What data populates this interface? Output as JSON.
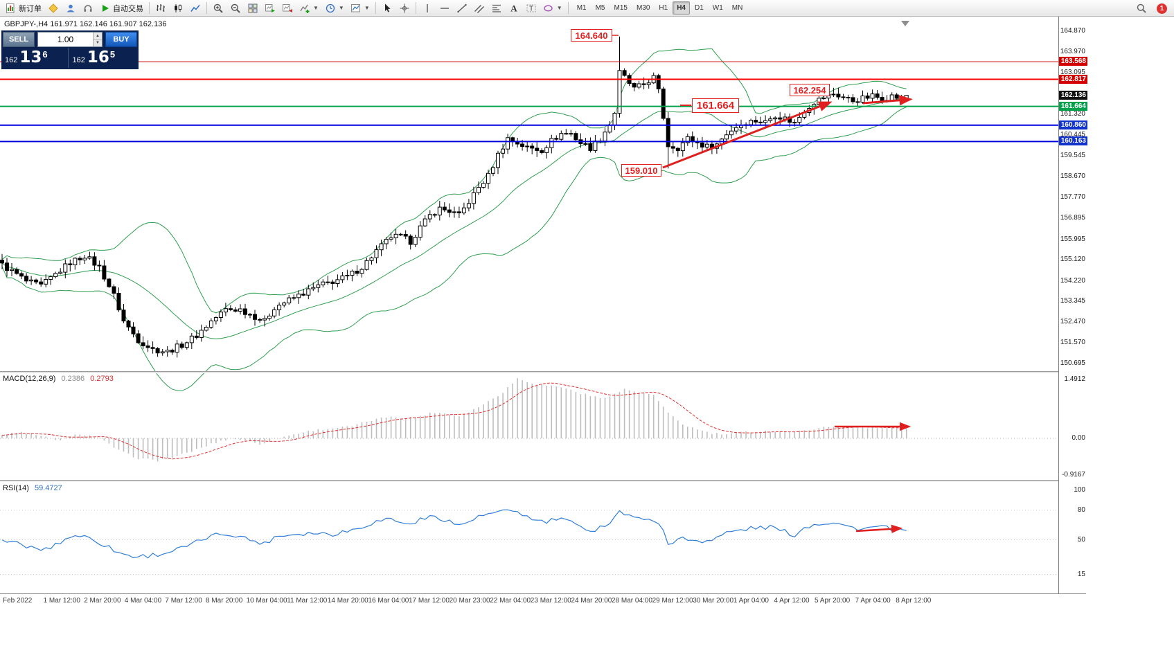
{
  "toolbar": {
    "new_order": "新订单",
    "auto_trading": "自动交易",
    "timeframes": [
      "M1",
      "M5",
      "M15",
      "M30",
      "H1",
      "H4",
      "D1",
      "W1",
      "MN"
    ],
    "active_timeframe": "H4",
    "notification_badge": "1"
  },
  "chart_header": {
    "title": "GBPJPY-,H4 161.971 162.146 161.907 162.136"
  },
  "trade_panel": {
    "sell_label": "SELL",
    "buy_label": "BUY",
    "volume": "1.00",
    "sell_price": {
      "prefix": "162",
      "big": "13",
      "sup": "6"
    },
    "buy_price": {
      "prefix": "162",
      "big": "16",
      "sup": "5"
    }
  },
  "annotations": {
    "spike_high": "164.640",
    "swing_low": "159.010",
    "level_mid": "161.664",
    "level_res": "162.254"
  },
  "macd_panel": {
    "name": "MACD(12,26,9)",
    "value_main": "0.2386",
    "value_signal": "0.2793"
  },
  "rsi_panel": {
    "name": "RSI(14)",
    "value": "59.4727"
  },
  "chart_data": {
    "type": "candlestick",
    "symbol": "GBPJPY-",
    "period": "H4",
    "last_ohlc": {
      "open": 161.971,
      "high": 162.146,
      "low": 161.907,
      "close": 162.136
    },
    "price_axis": {
      "min": 150.695,
      "max": 164.87,
      "ticks": [
        164.87,
        163.97,
        163.095,
        161.32,
        160.445,
        159.545,
        158.67,
        157.77,
        156.895,
        155.995,
        155.12,
        154.22,
        153.345,
        152.47,
        151.57,
        150.695
      ],
      "badges": [
        {
          "value": "163.568",
          "price": 163.568,
          "color": "#d40000"
        },
        {
          "value": "162.817",
          "price": 162.817,
          "color": "#d40000"
        },
        {
          "value": "162.136",
          "price": 162.136,
          "color": "#111111"
        },
        {
          "value": "161.664",
          "price": 161.664,
          "color": "#00a14b"
        },
        {
          "value": "160.860",
          "price": 160.86,
          "color": "#1133cc"
        },
        {
          "value": "160.163",
          "price": 160.163,
          "color": "#1133cc"
        }
      ]
    },
    "hlines": [
      {
        "price": 163.568,
        "color": "#cc0000",
        "width": 1
      },
      {
        "price": 162.817,
        "color": "#ff0000",
        "width": 2
      },
      {
        "price": 161.664,
        "color": "#00a14b",
        "width": 2
      },
      {
        "price": 160.86,
        "color": "#0000dd",
        "width": 2
      },
      {
        "price": 160.163,
        "color": "#0000dd",
        "width": 2
      }
    ],
    "bollinger": {
      "period": 20,
      "deviation": 2,
      "color": "#2e9e4f"
    },
    "candles": {
      "count": 187,
      "close_anchors": [
        [
          0,
          154.9
        ],
        [
          3,
          154.5
        ],
        [
          5,
          154.2
        ],
        [
          8,
          154.0
        ],
        [
          11,
          154.5
        ],
        [
          14,
          155.0
        ],
        [
          17,
          155.3
        ],
        [
          20,
          154.8
        ],
        [
          23,
          153.6
        ],
        [
          25,
          152.5
        ],
        [
          28,
          151.7
        ],
        [
          31,
          151.3
        ],
        [
          34,
          151.2
        ],
        [
          37,
          151.5
        ],
        [
          40,
          151.9
        ],
        [
          43,
          152.5
        ],
        [
          46,
          153.0
        ],
        [
          49,
          153.0
        ],
        [
          52,
          152.7
        ],
        [
          54,
          152.5
        ],
        [
          56,
          153.1
        ],
        [
          59,
          153.4
        ],
        [
          62,
          153.7
        ],
        [
          65,
          154.0
        ],
        [
          68,
          154.2
        ],
        [
          71,
          154.4
        ],
        [
          74,
          154.8
        ],
        [
          77,
          155.5
        ],
        [
          80,
          156.1
        ],
        [
          82,
          156.1
        ],
        [
          84,
          155.9
        ],
        [
          86,
          156.5
        ],
        [
          88,
          157.0
        ],
        [
          90,
          157.3
        ],
        [
          92,
          157.2
        ],
        [
          94,
          157.0
        ],
        [
          96,
          157.6
        ],
        [
          98,
          158.2
        ],
        [
          100,
          158.7
        ],
        [
          102,
          159.6
        ],
        [
          104,
          160.3
        ],
        [
          106,
          160.1
        ],
        [
          108,
          159.9
        ],
        [
          111,
          159.8
        ],
        [
          113,
          160.2
        ],
        [
          115,
          160.5
        ],
        [
          117,
          160.5
        ],
        [
          119,
          160.1
        ],
        [
          121,
          159.9
        ],
        [
          123,
          160.3
        ],
        [
          125,
          160.9
        ],
        [
          126,
          161.4
        ],
        [
          127,
          163.1
        ],
        [
          128,
          162.9
        ],
        [
          130,
          162.4
        ],
        [
          132,
          162.6
        ],
        [
          134,
          162.9
        ],
        [
          135,
          162.3
        ],
        [
          136,
          161.2
        ],
        [
          137,
          160.0
        ],
        [
          139,
          159.9
        ],
        [
          141,
          160.3
        ],
        [
          143,
          160.1
        ],
        [
          145,
          159.95
        ],
        [
          147,
          160.05
        ],
        [
          149,
          160.5
        ],
        [
          151,
          160.8
        ],
        [
          153,
          161.0
        ],
        [
          155,
          161.05
        ],
        [
          157,
          161.0
        ],
        [
          159,
          161.3
        ],
        [
          161,
          161.15
        ],
        [
          163,
          160.95
        ],
        [
          165,
          161.5
        ],
        [
          167,
          161.85
        ],
        [
          169,
          162.05
        ],
        [
          171,
          162.2
        ],
        [
          173,
          162.05
        ],
        [
          175,
          161.9
        ],
        [
          177,
          162.0
        ],
        [
          179,
          162.1
        ],
        [
          181,
          162.0
        ],
        [
          183,
          162.1
        ],
        [
          185,
          162.0
        ],
        [
          186,
          162.136
        ]
      ],
      "extremes": [
        {
          "i": 127,
          "high": 164.64
        },
        {
          "i": 137,
          "low": 159.01
        }
      ]
    },
    "macd": {
      "name": "MACD(12,26,9)",
      "current_macd": 0.2386,
      "current_signal": 0.2793,
      "scale_labels": {
        "max": "1.4912",
        "zero": "0.00",
        "min": "-0.9167"
      },
      "anchors": [
        [
          0,
          0.08
        ],
        [
          4,
          0.15
        ],
        [
          8,
          0.05
        ],
        [
          12,
          -0.05
        ],
        [
          16,
          0.12
        ],
        [
          20,
          0.0
        ],
        [
          24,
          -0.3
        ],
        [
          28,
          -0.5
        ],
        [
          32,
          -0.55
        ],
        [
          36,
          -0.45
        ],
        [
          40,
          -0.28
        ],
        [
          44,
          -0.1
        ],
        [
          47,
          0.0
        ],
        [
          50,
          -0.05
        ],
        [
          53,
          -0.15
        ],
        [
          56,
          -0.02
        ],
        [
          60,
          0.1
        ],
        [
          64,
          0.2
        ],
        [
          68,
          0.25
        ],
        [
          72,
          0.3
        ],
        [
          76,
          0.45
        ],
        [
          80,
          0.55
        ],
        [
          83,
          0.5
        ],
        [
          86,
          0.56
        ],
        [
          89,
          0.65
        ],
        [
          92,
          0.6
        ],
        [
          94,
          0.56
        ],
        [
          97,
          0.72
        ],
        [
          100,
          0.92
        ],
        [
          103,
          1.15
        ],
        [
          106,
          1.49
        ],
        [
          109,
          1.38
        ],
        [
          112,
          1.32
        ],
        [
          115,
          1.28
        ],
        [
          119,
          1.12
        ],
        [
          123,
          1.0
        ],
        [
          126,
          1.1
        ],
        [
          128,
          1.22
        ],
        [
          131,
          1.15
        ],
        [
          134,
          1.08
        ],
        [
          137,
          0.62
        ],
        [
          140,
          0.35
        ],
        [
          143,
          0.22
        ],
        [
          146,
          0.12
        ],
        [
          149,
          0.1
        ],
        [
          152,
          0.15
        ],
        [
          156,
          0.18
        ],
        [
          160,
          0.17
        ],
        [
          163,
          0.15
        ],
        [
          167,
          0.24
        ],
        [
          171,
          0.3
        ],
        [
          175,
          0.28
        ],
        [
          179,
          0.27
        ],
        [
          183,
          0.25
        ],
        [
          186,
          0.2386
        ]
      ]
    },
    "rsi": {
      "name": "RSI(14)",
      "current": 59.4727,
      "scale_labels": [
        "100",
        "80",
        "50",
        "15"
      ],
      "levels": [
        80,
        50,
        15
      ],
      "anchors": [
        [
          0,
          50
        ],
        [
          3,
          46
        ],
        [
          6,
          42
        ],
        [
          9,
          40
        ],
        [
          12,
          48
        ],
        [
          15,
          55
        ],
        [
          18,
          52
        ],
        [
          21,
          45
        ],
        [
          24,
          37
        ],
        [
          27,
          33
        ],
        [
          30,
          34
        ],
        [
          33,
          36
        ],
        [
          36,
          40
        ],
        [
          39,
          45
        ],
        [
          42,
          52
        ],
        [
          45,
          56
        ],
        [
          48,
          55
        ],
        [
          51,
          50
        ],
        [
          54,
          46
        ],
        [
          56,
          53
        ],
        [
          60,
          56
        ],
        [
          64,
          57
        ],
        [
          68,
          56
        ],
        [
          72,
          60
        ],
        [
          76,
          67
        ],
        [
          80,
          72
        ],
        [
          83,
          65
        ],
        [
          86,
          70
        ],
        [
          89,
          74
        ],
        [
          92,
          69
        ],
        [
          94,
          64
        ],
        [
          97,
          71
        ],
        [
          100,
          76
        ],
        [
          103,
          78
        ],
        [
          106,
          79
        ],
        [
          109,
          70
        ],
        [
          112,
          68
        ],
        [
          115,
          72
        ],
        [
          119,
          62
        ],
        [
          122,
          60
        ],
        [
          125,
          68
        ],
        [
          127,
          79
        ],
        [
          130,
          71
        ],
        [
          133,
          73
        ],
        [
          136,
          60
        ],
        [
          137,
          47
        ],
        [
          140,
          51
        ],
        [
          143,
          49
        ],
        [
          146,
          50
        ],
        [
          149,
          57
        ],
        [
          152,
          60
        ],
        [
          155,
          62
        ],
        [
          158,
          63
        ],
        [
          161,
          58
        ],
        [
          163,
          55
        ],
        [
          165,
          62
        ],
        [
          167,
          66
        ],
        [
          169,
          67
        ],
        [
          171,
          68
        ],
        [
          174,
          63
        ],
        [
          177,
          61
        ],
        [
          180,
          63
        ],
        [
          183,
          61
        ],
        [
          186,
          59.47
        ]
      ]
    },
    "time_axis": [
      "Feb 2022",
      "1 Mar 12:00",
      "2 Mar 20:00",
      "4 Mar 04:00",
      "7 Mar 12:00",
      "8 Mar 20:00",
      "10 Mar 04:00",
      "11 Mar 12:00",
      "14 Mar 20:00",
      "16 Mar 04:00",
      "17 Mar 12:00",
      "20 Mar 23:00",
      "22 Mar 04:00",
      "23 Mar 12:00",
      "24 Mar 20:00",
      "28 Mar 04:00",
      "29 Mar 12:00",
      "30 Mar 20:00",
      "1 Apr 04:00",
      "4 Apr 12:00",
      "5 Apr 20:00",
      "7 Apr 04:00",
      "8 Apr 12:00"
    ]
  }
}
